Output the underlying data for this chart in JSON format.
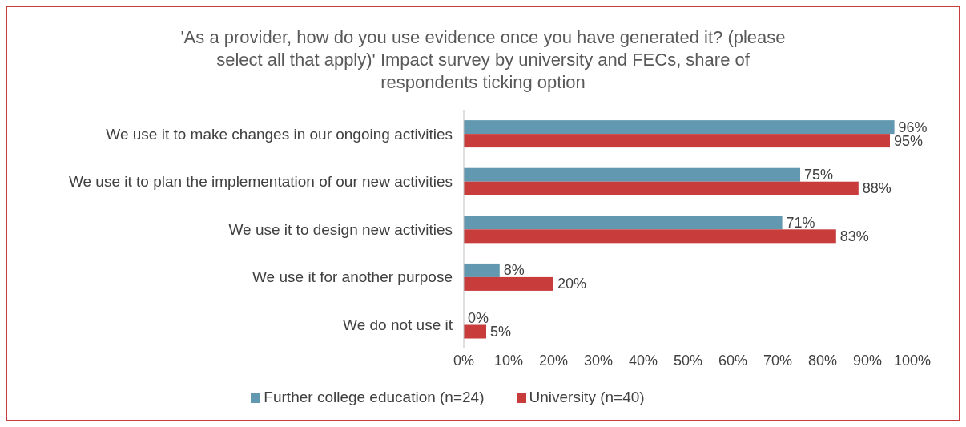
{
  "chart_data": {
    "type": "bar",
    "orientation": "horizontal",
    "title": "'As a provider, how do you use evidence once you have generated it? (please select all that apply)' Impact survey by university and FECs, share of respondents ticking option",
    "categories": [
      "We use it to make changes in our ongoing activities",
      "We use it to plan the implementation of our new activities",
      "We use it to design new activities",
      "We use it for another purpose",
      "We do not use it"
    ],
    "series": [
      {
        "name": "Further college education (n=24)",
        "color": "#6399b0",
        "values": [
          96,
          75,
          71,
          8,
          0
        ],
        "value_labels": [
          "96%",
          "75%",
          "71%",
          "8%",
          "0%"
        ]
      },
      {
        "name": "University (n=40)",
        "color": "#c93c3c",
        "values": [
          95,
          88,
          83,
          20,
          5
        ],
        "value_labels": [
          "95%",
          "88%",
          "83%",
          "20%",
          "5%"
        ]
      }
    ],
    "xlim": [
      0,
      100
    ],
    "xticks": [
      {
        "value": 0,
        "label": "0%"
      },
      {
        "value": 10,
        "label": "10%"
      },
      {
        "value": 20,
        "label": "20%"
      },
      {
        "value": 30,
        "label": "30%"
      },
      {
        "value": 40,
        "label": "40%"
      },
      {
        "value": 50,
        "label": "50%"
      },
      {
        "value": 60,
        "label": "60%"
      },
      {
        "value": 70,
        "label": "70%"
      },
      {
        "value": 80,
        "label": "80%"
      },
      {
        "value": 90,
        "label": "90%"
      },
      {
        "value": 100,
        "label": "100%"
      }
    ],
    "grid": false,
    "legend": "bottom"
  }
}
